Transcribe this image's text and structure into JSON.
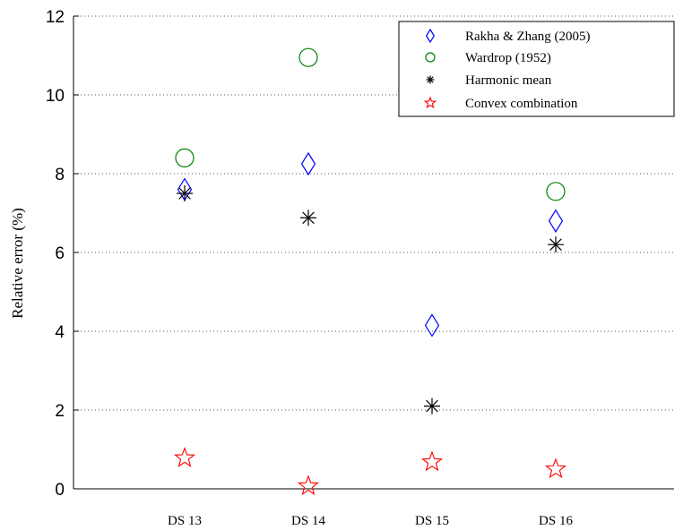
{
  "chart_data": {
    "type": "scatter",
    "title": "",
    "xlabel": "",
    "ylabel": "Relative error (%)",
    "categories": [
      "DS 13",
      "DS 14",
      "DS 15",
      "DS 16"
    ],
    "ylim": [
      0,
      12
    ],
    "yticks": [
      0,
      2,
      4,
      6,
      8,
      10,
      12
    ],
    "grid": "horizontal dotted",
    "legend_position": "top-right",
    "series": [
      {
        "name": "Rakha & Zhang (2005)",
        "marker": "diamond",
        "color": "#0000ff",
        "values": [
          7.6,
          8.25,
          4.15,
          6.8
        ]
      },
      {
        "name": "Wardrop (1952)",
        "marker": "circle",
        "color": "#008000",
        "values": [
          8.4,
          10.95,
          null,
          7.55
        ]
      },
      {
        "name": "Harmonic mean",
        "marker": "asterisk",
        "color": "#000000",
        "values": [
          7.5,
          6.88,
          2.1,
          6.2
        ]
      },
      {
        "name": "Convex combination",
        "marker": "pentagram",
        "color": "#ff0000",
        "values": [
          0.78,
          0.07,
          0.68,
          0.5
        ]
      }
    ]
  }
}
